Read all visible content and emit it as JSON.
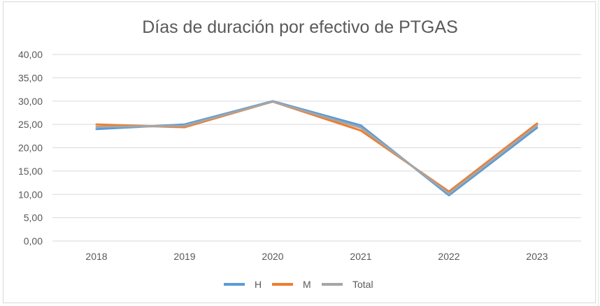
{
  "chart_data": {
    "type": "line",
    "title": "Días de duración por efectivo de PTGAS",
    "categories": [
      "2018",
      "2019",
      "2020",
      "2021",
      "2022",
      "2023"
    ],
    "series": [
      {
        "name": "H",
        "values": [
          24.0,
          25.0,
          30.0,
          24.8,
          9.8,
          24.3
        ],
        "color": "#5b9bd5"
      },
      {
        "name": "M",
        "values": [
          25.0,
          24.4,
          29.9,
          23.7,
          10.6,
          25.2
        ],
        "color": "#ed7d31"
      },
      {
        "name": "Total",
        "values": [
          24.5,
          24.7,
          29.9,
          24.3,
          10.2,
          24.8
        ],
        "color": "#a5a5a5"
      }
    ],
    "y_ticks": [
      "0,00",
      "5,00",
      "10,00",
      "15,00",
      "20,00",
      "25,00",
      "30,00",
      "35,00",
      "40,00"
    ],
    "ylim": [
      0,
      40
    ],
    "grid": true,
    "legend_position": "bottom"
  }
}
